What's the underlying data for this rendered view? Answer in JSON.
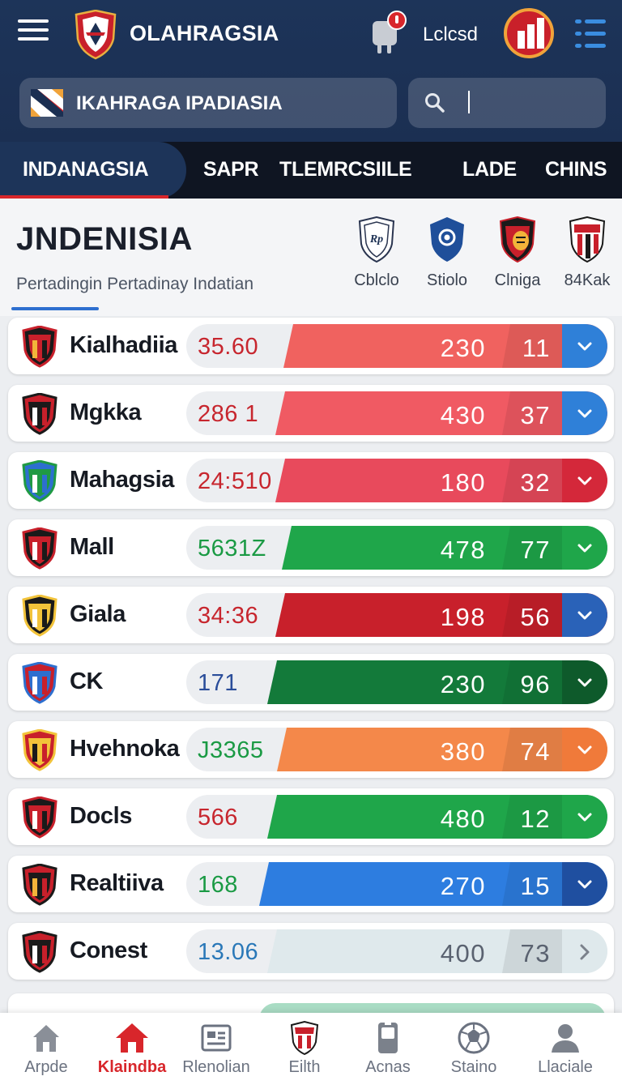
{
  "header": {
    "app_title": "OLAHRAGSIA",
    "user_label": "Lclcsd",
    "league_selector": "IKAHRAGA IPADIASIA",
    "search_placeholder": ""
  },
  "tabs": [
    {
      "label": "INDANAGSIA",
      "active": true
    },
    {
      "label": "SAPR",
      "active": false
    },
    {
      "label": "TLEMRCSIILE",
      "active": false
    },
    {
      "label": "LADE",
      "active": false
    },
    {
      "label": "CHINS",
      "active": false
    }
  ],
  "league": {
    "title": "JNDENISIA",
    "subtitle": "Pertadingin Pertadinay Indatian",
    "clubs": [
      {
        "name": "Cblclo",
        "icon": "white-shield-icon"
      },
      {
        "name": "Stiolo",
        "icon": "blue-shield-icon"
      },
      {
        "name": "Clniga",
        "icon": "tiger-shield-icon"
      },
      {
        "name": "84Kak",
        "icon": "red-striped-shield-icon"
      }
    ]
  },
  "rows": [
    {
      "team": "Kialhadiia",
      "score": "35.60",
      "value": "230",
      "points": "11",
      "bar_color": "#f0625f",
      "score_color": "#c7262e",
      "chevron_color": "#2f80d8",
      "icon": "chevron-down"
    },
    {
      "team": "Mgkka",
      "score": "286 1",
      "value": "430",
      "points": "37",
      "bar_color": "#f05a63",
      "score_color": "#c7262e",
      "chevron_color": "#2f80d8",
      "icon": "chevron-down"
    },
    {
      "team": "Mahagsia",
      "score": "24:510",
      "value": "180",
      "points": "32",
      "bar_color": "#e84a5c",
      "score_color": "#c7262e",
      "chevron_color": "#d4283a",
      "icon": "chevron-down"
    },
    {
      "team": "Mall",
      "score": "5631Z",
      "value": "478",
      "points": "77",
      "bar_color": "#1fa64a",
      "score_color": "#1a9a44",
      "chevron_color": "#1fa64a",
      "icon": "chevron-down"
    },
    {
      "team": "Giala",
      "score": "34:36",
      "value": "198",
      "points": "56",
      "bar_color": "#c8202b",
      "score_color": "#c7262e",
      "chevron_color": "#2a62b8",
      "icon": "chevron-down"
    },
    {
      "team": "CK",
      "score": "171",
      "value": "230",
      "points": "96",
      "bar_color": "#137a3a",
      "score_color": "#2a4d9a",
      "chevron_color": "#0e5a2b",
      "icon": "chevron-down"
    },
    {
      "team": "Hvehnoka",
      "score": "J3365",
      "value": "380",
      "points": "74",
      "bar_color": "#f4884a",
      "score_color": "#1a9a44",
      "chevron_color": "#f07a3a",
      "icon": "chevron-down"
    },
    {
      "team": "Docls",
      "score": "566",
      "value": "480",
      "points": "12",
      "bar_color": "#1fa64a",
      "score_color": "#c7262e",
      "chevron_color": "#1fa64a",
      "icon": "chevron-down"
    },
    {
      "team": "Realtiiva",
      "score": "168",
      "value": "270",
      "points": "15",
      "bar_color": "#2d7de0",
      "score_color": "#1a9a44",
      "chevron_color": "#1f4fa0",
      "icon": "chevron-down"
    },
    {
      "team": "Conest",
      "score": "13.06",
      "value": "400",
      "points": "73",
      "bar_color": "#dfe9ec",
      "score_color": "#2a78b8",
      "chevron_color": "#dfe9ec",
      "icon": "chevron-right"
    }
  ],
  "bottom_nav": [
    {
      "label": "Arpde",
      "icon": "house-icon",
      "active": false
    },
    {
      "label": "Klaindba",
      "icon": "home-icon",
      "active": true
    },
    {
      "label": "Rlenolian",
      "icon": "news-icon",
      "active": false
    },
    {
      "label": "Eilth",
      "icon": "shield-icon",
      "active": false
    },
    {
      "label": "Acnas",
      "icon": "phone-icon",
      "active": false
    },
    {
      "label": "Staino",
      "icon": "ball-icon",
      "active": false
    },
    {
      "label": "Llaciale",
      "icon": "user-icon",
      "active": false
    }
  ]
}
